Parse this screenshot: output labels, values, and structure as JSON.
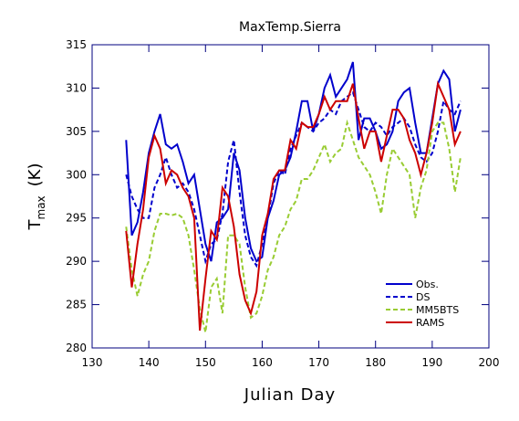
{
  "chart_data": {
    "type": "line",
    "title": "MaxTemp.Sierra",
    "xlabel": "Julian Day",
    "ylabel": {
      "main": "T",
      "sub": "max",
      "unit": "(K)"
    },
    "x": [
      136,
      137,
      138,
      139,
      140,
      141,
      142,
      143,
      144,
      145,
      146,
      147,
      148,
      149,
      150,
      151,
      152,
      153,
      154,
      155,
      156,
      157,
      158,
      159,
      160,
      161,
      162,
      163,
      164,
      165,
      166,
      167,
      168,
      169,
      170,
      171,
      172,
      173,
      174,
      175,
      176,
      177,
      178,
      179,
      180,
      181,
      182,
      183,
      184,
      185,
      186,
      187,
      188,
      189,
      190,
      191,
      192,
      193,
      194,
      195
    ],
    "series": [
      {
        "name": "Obs.",
        "color": "#0000cc",
        "dashed": false,
        "values": [
          304,
          293,
          294.5,
          298,
          302.5,
          305,
          307,
          303.5,
          303,
          303.5,
          301.5,
          299,
          300,
          296,
          292,
          290,
          294.5,
          295,
          296,
          302.5,
          300.5,
          295,
          291.5,
          290,
          290.5,
          295,
          297,
          300,
          300.5,
          302,
          305,
          308.5,
          308.5,
          305,
          307,
          310,
          311.5,
          309,
          310,
          311,
          313,
          304,
          306.5,
          306.5,
          305,
          303,
          303.5,
          305,
          308.5,
          309.5,
          310,
          306,
          302.5,
          302.5,
          306.5,
          310.5,
          312,
          311,
          305,
          307.5
        ]
      },
      {
        "name": "DS",
        "color": "#0000cc",
        "dashed": true,
        "values": [
          300,
          297.5,
          296,
          295,
          295,
          298.5,
          300,
          302,
          300,
          298.5,
          299,
          298,
          296,
          293,
          290,
          292,
          292.5,
          295.5,
          301.5,
          304,
          298,
          293,
          290.5,
          289.5,
          292,
          295,
          299,
          300.5,
          300,
          303,
          304.5,
          306,
          305.5,
          305,
          306,
          306.5,
          307.5,
          307,
          308.5,
          309,
          309.5,
          307.5,
          305.5,
          305,
          306,
          305.5,
          304.5,
          305.5,
          306,
          306.5,
          305.5,
          303.5,
          302,
          301.5,
          302.5,
          305,
          308.5,
          307.5,
          307,
          308.5
        ]
      },
      {
        "name": "MM5BTS",
        "color": "#99cc33",
        "dashed": true,
        "values": [
          294,
          289,
          286,
          288.5,
          290,
          293.5,
          295.5,
          295.5,
          295.3,
          295.5,
          295,
          293,
          289,
          284.5,
          281.8,
          287,
          288,
          284,
          293,
          293,
          292,
          287,
          283.5,
          284,
          286,
          289,
          290.5,
          293,
          294,
          296,
          297,
          299.5,
          299.5,
          300.5,
          302,
          303.5,
          301.5,
          302.5,
          303,
          306,
          304,
          302,
          301,
          300,
          298,
          295.5,
          300,
          303,
          302,
          301,
          300,
          295,
          298.5,
          300.5,
          305,
          306,
          306,
          303,
          298,
          302
        ]
      },
      {
        "name": "RAMS",
        "color": "#cc0000",
        "dashed": false,
        "values": [
          293.5,
          287,
          292,
          296,
          302,
          304.5,
          303,
          299,
          300.5,
          300,
          298.5,
          297.5,
          295,
          282,
          288,
          293.5,
          292.5,
          298.5,
          297.5,
          294,
          288.5,
          285.5,
          284,
          286.5,
          293,
          295.5,
          299.5,
          300.5,
          300.5,
          304,
          303,
          306,
          305.5,
          305.5,
          307,
          309,
          307.5,
          308.5,
          308.5,
          308.5,
          310.5,
          306.5,
          303,
          305,
          305,
          301.5,
          304.5,
          307.5,
          307.5,
          306.5,
          304,
          302.5,
          300,
          302.5,
          306,
          310.5,
          309,
          307.5,
          303.5,
          305
        ]
      }
    ],
    "xlim": [
      130,
      200
    ],
    "xticks": [
      130,
      140,
      150,
      160,
      170,
      180,
      190,
      200
    ],
    "ylim": [
      280,
      315
    ],
    "yticks": [
      280,
      285,
      290,
      295,
      300,
      305,
      310,
      315
    ],
    "axis_color": "#00007f",
    "legend": "lower right"
  }
}
